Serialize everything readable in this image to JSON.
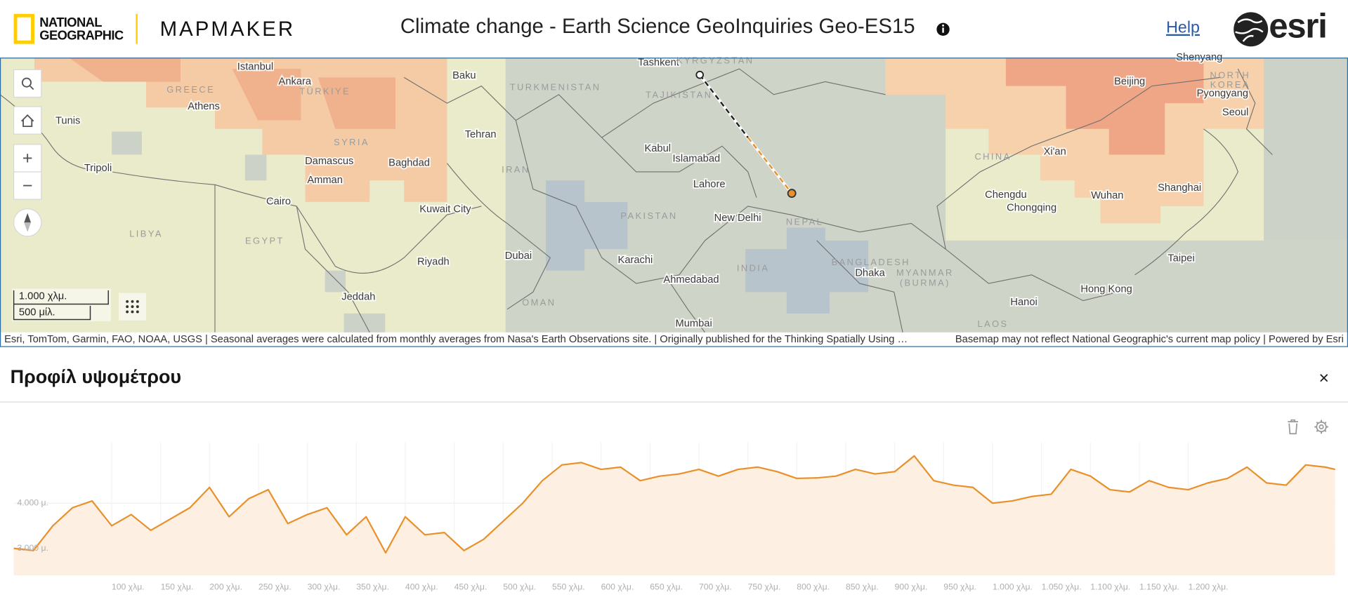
{
  "header": {
    "brand": [
      "NATIONAL",
      "GEOGRAPHIC"
    ],
    "app": "MAPMAKER",
    "title": "Climate change - Earth Science GeoInquiries Geo-ES15",
    "help": "Help",
    "esri": "esri"
  },
  "map": {
    "labels": [
      "Istanbul",
      "Ankara",
      "GREECE",
      "TÜRKIYE",
      "Athens",
      "Tunis",
      "Baku",
      "TURKMENISTAN",
      "Tashkent",
      "KYRGYZSTAN",
      "TAJIKISTAN",
      "Tehran",
      "SYRIA",
      "Damascus",
      "Baghdad",
      "Amman",
      "Tripoli",
      "IRAN",
      "Kabul",
      "Islamabad",
      "Lahore",
      "Cairo",
      "Kuwait City",
      "PAKISTAN",
      "New Delhi",
      "NEPAL",
      "LIBYA",
      "EGYPT",
      "Riyadh",
      "Dubai",
      "Karachi",
      "Ahmedabad",
      "INDIA",
      "BANGLADESH",
      "Dhaka",
      "MYANMAR",
      "(BURMA)",
      "Jeddah",
      "OMAN",
      "Mumbai",
      "Hanoi",
      "LAOS",
      "Hong Kong",
      "Taipei",
      "CHINA",
      "Xi'an",
      "Chengdu",
      "Chongqing",
      "Wuhan",
      "Shanghai",
      "Beijing",
      "NORTH",
      "KOREA",
      "Pyongyang",
      "Seoul",
      "Shenyang"
    ],
    "scale": [
      "1.000 χλμ.",
      "500 μίλ."
    ],
    "attribution": "Esri, TomTom, Garmin, FAO, NOAA, USGS | Seasonal averages were calculated from monthly averages from Nasa's Earth Observations site. | Originally published for the Thinking Spatially Using …",
    "policy": "Basemap may not reflect National Geographic's current map policy | Powered by Esri"
  },
  "panel": {
    "title": "Προφίλ υψομέτρου"
  },
  "chart_data": {
    "type": "area",
    "x": [
      0,
      20,
      40,
      60,
      80,
      100,
      120,
      140,
      160,
      180,
      200,
      220,
      240,
      260,
      280,
      300,
      320,
      340,
      360,
      380,
      400,
      420,
      440,
      460,
      480,
      500,
      520,
      540,
      560,
      580,
      600,
      620,
      640,
      660,
      680,
      700,
      720,
      740,
      760,
      780,
      800,
      820,
      840,
      860,
      880,
      900,
      920,
      940,
      960,
      980,
      1000,
      1020,
      1040,
      1060,
      1080,
      1100,
      1120,
      1140,
      1160,
      1180,
      1200,
      1220,
      1240,
      1260,
      1280,
      1300,
      1320,
      1340,
      1350
    ],
    "values": [
      3000,
      2950,
      3500,
      3900,
      4050,
      3500,
      3750,
      3400,
      3650,
      3900,
      4350,
      3700,
      4100,
      4300,
      3550,
      3750,
      3900,
      3300,
      3700,
      2900,
      3700,
      3300,
      3350,
      2950,
      3200,
      3600,
      4000,
      4500,
      4850,
      4900,
      4750,
      4800,
      4500,
      4600,
      4650,
      4750,
      4600,
      4750,
      4800,
      4700,
      4550,
      4560,
      4600,
      4750,
      4650,
      4700,
      5050,
      4500,
      4400,
      4350,
      4000,
      4050,
      4150,
      4200,
      4750,
      4600,
      4300,
      4250,
      4500,
      4350,
      4300,
      4450,
      4550,
      4800,
      4450,
      4400,
      4850,
      4800,
      4750
    ],
    "color": "#e8912b",
    "fill": "#fdf0e3",
    "xlim": [
      0,
      1350
    ],
    "ylim": [
      2400,
      5350
    ],
    "xticks": [
      {
        "value": 100,
        "label": "100 χλμ."
      },
      {
        "value": 150,
        "label": "150 χλμ."
      },
      {
        "value": 200,
        "label": "200 χλμ."
      },
      {
        "value": 250,
        "label": "250 χλμ."
      },
      {
        "value": 300,
        "label": "300 χλμ."
      },
      {
        "value": 350,
        "label": "350 χλμ."
      },
      {
        "value": 400,
        "label": "400 χλμ."
      },
      {
        "value": 450,
        "label": "450 χλμ."
      },
      {
        "value": 500,
        "label": "500 χλμ."
      },
      {
        "value": 550,
        "label": "550 χλμ."
      },
      {
        "value": 600,
        "label": "600 χλμ."
      },
      {
        "value": 650,
        "label": "650 χλμ."
      },
      {
        "value": 700,
        "label": "700 χλμ."
      },
      {
        "value": 750,
        "label": "750 χλμ."
      },
      {
        "value": 800,
        "label": "800 χλμ."
      },
      {
        "value": 850,
        "label": "850 χλμ."
      },
      {
        "value": 900,
        "label": "900 χλμ."
      },
      {
        "value": 950,
        "label": "950 χλμ."
      },
      {
        "value": 1000,
        "label": "1.000 χλμ."
      },
      {
        "value": 1050,
        "label": "1.050 χλμ."
      },
      {
        "value": 1100,
        "label": "1.100 χλμ."
      },
      {
        "value": 1150,
        "label": "1.150 χλμ."
      },
      {
        "value": 1200,
        "label": "1.200 χλμ."
      }
    ],
    "yticks": [
      {
        "value": 3000,
        "label": "3.000 μ."
      },
      {
        "value": 4000,
        "label": "4.000 μ."
      }
    ],
    "grid": true
  }
}
